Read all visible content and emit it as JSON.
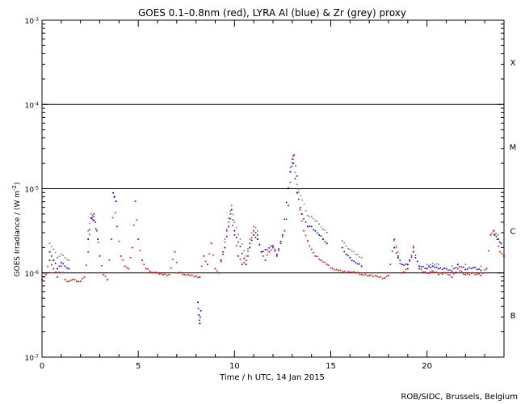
{
  "chart_data": {
    "type": "scatter",
    "title": "GOES 0.1–0.8nm (red), LYRA Al (blue) & Zr (grey) proxy",
    "xlabel": "Time / h UTC, 14 Jan 2015",
    "ylabel_main": "GOES Irradiance / (W m",
    "ylabel_sup": "-2",
    "ylabel_close": ")",
    "xlim": [
      0,
      24
    ],
    "ylim_log10": [
      -7,
      -3
    ],
    "x_ticks": [
      {
        "value": 0,
        "label": "0"
      },
      {
        "value": 5,
        "label": "5"
      },
      {
        "value": 10,
        "label": "10"
      },
      {
        "value": 15,
        "label": "15"
      },
      {
        "value": 20,
        "label": "20"
      }
    ],
    "y_ticks": [
      {
        "exp": -7,
        "base": "10",
        "sup": "-7"
      },
      {
        "exp": -6,
        "base": "10",
        "sup": "-6"
      },
      {
        "exp": -5,
        "base": "10",
        "sup": "-5"
      },
      {
        "exp": -4,
        "base": "10",
        "sup": "-4"
      },
      {
        "exp": -3,
        "base": "10",
        "sup": "-3"
      }
    ],
    "threshold_lines_exp": [
      -6,
      -5,
      -4
    ],
    "flare_classes": [
      {
        "label": "X",
        "exp": -3.5
      },
      {
        "label": "M",
        "exp": -4.5
      },
      {
        "label": "C",
        "exp": -5.5
      },
      {
        "label": "B",
        "exp": -6.5
      }
    ],
    "series": [
      {
        "name": "GOES 0.1-0.8nm",
        "color": "#ff0000",
        "points": [
          [
            0.0,
            -6.08
          ],
          [
            0.2,
            -6.02
          ],
          [
            0.4,
            -5.85
          ],
          [
            0.6,
            -5.95
          ],
          [
            0.8,
            -6.05
          ],
          [
            1.0,
            -5.92
          ],
          [
            1.2,
            -6.08
          ],
          [
            1.4,
            -6.1
          ],
          [
            1.6,
            -6.08
          ],
          [
            1.8,
            -6.1
          ],
          [
            2.0,
            -6.1
          ],
          [
            2.2,
            -6.05
          ],
          [
            2.4,
            -5.75
          ],
          [
            2.55,
            -5.35
          ],
          [
            2.7,
            -5.3
          ],
          [
            2.85,
            -5.5
          ],
          [
            3.0,
            -5.8
          ],
          [
            3.2,
            -6.02
          ],
          [
            3.4,
            -6.08
          ],
          [
            3.6,
            -5.6
          ],
          [
            3.75,
            -5.1
          ],
          [
            3.9,
            -5.45
          ],
          [
            4.1,
            -5.8
          ],
          [
            4.3,
            -5.92
          ],
          [
            4.5,
            -5.95
          ],
          [
            4.7,
            -5.7
          ],
          [
            4.85,
            -5.15
          ],
          [
            5.0,
            -5.6
          ],
          [
            5.2,
            -5.85
          ],
          [
            5.4,
            -5.95
          ],
          [
            5.6,
            -5.98
          ],
          [
            5.8,
            -6.0
          ],
          [
            6.0,
            -6.0
          ],
          [
            6.3,
            -6.02
          ],
          [
            6.6,
            -6.02
          ],
          [
            6.9,
            -5.75
          ],
          [
            7.1,
            -6.0
          ],
          [
            7.4,
            -6.02
          ],
          [
            7.7,
            -6.03
          ],
          [
            8.0,
            -6.04
          ],
          [
            8.2,
            -6.05
          ],
          [
            8.4,
            -5.8
          ],
          [
            8.6,
            -5.9
          ],
          [
            8.8,
            -5.65
          ],
          [
            9.0,
            -5.95
          ],
          [
            9.2,
            -6.0
          ],
          [
            9.4,
            -5.75
          ],
          [
            9.6,
            -5.5
          ],
          [
            9.8,
            -5.3
          ],
          [
            10.0,
            -5.55
          ],
          [
            10.2,
            -5.8
          ],
          [
            10.4,
            -5.9
          ],
          [
            10.6,
            -5.85
          ],
          [
            10.8,
            -5.65
          ],
          [
            11.0,
            -5.5
          ],
          [
            11.2,
            -5.55
          ],
          [
            11.4,
            -5.75
          ],
          [
            11.6,
            -5.85
          ],
          [
            11.8,
            -5.75
          ],
          [
            12.0,
            -5.7
          ],
          [
            12.2,
            -5.8
          ],
          [
            12.4,
            -5.65
          ],
          [
            12.6,
            -5.5
          ],
          [
            12.8,
            -5.2
          ],
          [
            13.0,
            -4.65
          ],
          [
            13.1,
            -4.6
          ],
          [
            13.25,
            -4.85
          ],
          [
            13.4,
            -5.25
          ],
          [
            13.6,
            -5.5
          ],
          [
            13.8,
            -5.62
          ],
          [
            14.0,
            -5.72
          ],
          [
            14.2,
            -5.8
          ],
          [
            14.5,
            -5.85
          ],
          [
            14.8,
            -5.9
          ],
          [
            15.1,
            -5.95
          ],
          [
            15.4,
            -5.97
          ],
          [
            15.7,
            -5.98
          ],
          [
            16.0,
            -5.99
          ],
          [
            16.3,
            -6.0
          ],
          [
            16.6,
            -6.02
          ],
          [
            17.0,
            -6.03
          ],
          [
            17.4,
            -6.04
          ],
          [
            17.8,
            -6.06
          ],
          [
            18.0,
            -6.03
          ],
          [
            18.3,
            -5.6
          ],
          [
            18.5,
            -5.8
          ],
          [
            18.7,
            -6.0
          ],
          [
            19.0,
            -5.95
          ],
          [
            19.3,
            -5.7
          ],
          [
            19.6,
            -5.95
          ],
          [
            20.0,
            -6.0
          ],
          [
            20.3,
            -5.98
          ],
          [
            20.6,
            -6.02
          ],
          [
            21.0,
            -6.0
          ],
          [
            21.3,
            -6.05
          ],
          [
            21.6,
            -5.95
          ],
          [
            22.0,
            -6.02
          ],
          [
            22.4,
            -6.0
          ],
          [
            22.8,
            -6.03
          ],
          [
            23.1,
            -5.95
          ],
          [
            23.3,
            -5.55
          ],
          [
            23.45,
            -5.5
          ],
          [
            23.65,
            -5.6
          ],
          [
            23.8,
            -5.75
          ],
          [
            24.0,
            -5.8
          ]
        ]
      },
      {
        "name": "LYRA Al",
        "color": "#0000ff",
        "points": [
          [
            0.4,
            -5.75
          ],
          [
            0.6,
            -5.85
          ],
          [
            0.8,
            -5.95
          ],
          [
            1.0,
            -5.88
          ],
          [
            1.2,
            -5.92
          ],
          [
            1.4,
            -5.95
          ],
          [
            2.4,
            -5.6
          ],
          [
            2.55,
            -5.35
          ],
          [
            2.7,
            -5.38
          ],
          [
            2.9,
            -5.6
          ],
          [
            3.7,
            -5.05
          ],
          [
            3.85,
            -5.15
          ],
          [
            8.1,
            -6.35
          ],
          [
            8.15,
            -6.5
          ],
          [
            8.2,
            -6.6
          ],
          [
            8.25,
            -6.45
          ],
          [
            9.3,
            -5.85
          ],
          [
            9.5,
            -5.7
          ],
          [
            9.7,
            -5.45
          ],
          [
            9.85,
            -5.25
          ],
          [
            10.0,
            -5.5
          ],
          [
            10.6,
            -5.9
          ],
          [
            10.8,
            -5.7
          ],
          [
            11.0,
            -5.55
          ],
          [
            11.2,
            -5.6
          ],
          [
            11.4,
            -5.75
          ],
          [
            12.0,
            -5.68
          ],
          [
            12.2,
            -5.78
          ],
          [
            12.5,
            -5.55
          ],
          [
            12.9,
            -4.8
          ],
          [
            13.05,
            -4.7
          ],
          [
            13.25,
            -5.05
          ],
          [
            13.5,
            -5.3
          ],
          [
            13.8,
            -5.45
          ],
          [
            14.0,
            -5.45
          ],
          [
            14.2,
            -5.5
          ],
          [
            14.4,
            -5.55
          ],
          [
            14.6,
            -5.6
          ],
          [
            14.8,
            -5.65
          ],
          [
            15.6,
            -5.7
          ],
          [
            15.8,
            -5.78
          ],
          [
            16.0,
            -5.82
          ],
          [
            16.3,
            -5.88
          ],
          [
            16.6,
            -5.92
          ],
          [
            18.3,
            -5.7
          ],
          [
            18.5,
            -5.82
          ],
          [
            18.7,
            -5.9
          ],
          [
            19.0,
            -5.9
          ],
          [
            19.3,
            -5.75
          ],
          [
            19.6,
            -5.92
          ],
          [
            20.0,
            -5.95
          ],
          [
            20.3,
            -5.92
          ],
          [
            20.6,
            -5.95
          ],
          [
            21.0,
            -5.95
          ],
          [
            21.3,
            -5.98
          ],
          [
            21.6,
            -5.9
          ],
          [
            22.0,
            -5.96
          ],
          [
            22.4,
            -5.94
          ],
          [
            22.8,
            -5.97
          ],
          [
            23.5,
            -5.55
          ],
          [
            23.7,
            -5.6
          ],
          [
            23.85,
            -5.65
          ]
        ]
      },
      {
        "name": "LYRA Zr",
        "color": "#808080",
        "points": [
          [
            0.4,
            -5.65
          ],
          [
            0.6,
            -5.72
          ],
          [
            0.8,
            -5.82
          ],
          [
            1.0,
            -5.78
          ],
          [
            1.2,
            -5.82
          ],
          [
            1.4,
            -5.85
          ],
          [
            2.4,
            -5.5
          ],
          [
            2.55,
            -5.3
          ],
          [
            2.7,
            -5.33
          ],
          [
            9.5,
            -5.6
          ],
          [
            9.7,
            -5.35
          ],
          [
            9.85,
            -5.2
          ],
          [
            10.0,
            -5.4
          ],
          [
            10.6,
            -5.8
          ],
          [
            10.8,
            -5.6
          ],
          [
            11.0,
            -5.45
          ],
          [
            11.2,
            -5.5
          ],
          [
            12.9,
            -4.75
          ],
          [
            13.05,
            -4.65
          ],
          [
            13.25,
            -4.95
          ],
          [
            13.8,
            -5.32
          ],
          [
            14.0,
            -5.33
          ],
          [
            14.2,
            -5.38
          ],
          [
            14.4,
            -5.42
          ],
          [
            14.6,
            -5.48
          ],
          [
            14.8,
            -5.52
          ],
          [
            15.6,
            -5.62
          ],
          [
            15.8,
            -5.68
          ],
          [
            16.0,
            -5.72
          ],
          [
            16.3,
            -5.78
          ],
          [
            16.6,
            -5.82
          ],
          [
            18.3,
            -5.62
          ],
          [
            18.5,
            -5.75
          ],
          [
            19.3,
            -5.68
          ],
          [
            20.0,
            -5.9
          ],
          [
            20.6,
            -5.9
          ],
          [
            21.3,
            -5.92
          ],
          [
            22.0,
            -5.9
          ],
          [
            22.8,
            -5.92
          ],
          [
            23.5,
            -5.5
          ],
          [
            23.7,
            -5.55
          ]
        ]
      }
    ]
  },
  "footer": {
    "credit": "ROB/SIDC, Brussels, Belgium"
  }
}
